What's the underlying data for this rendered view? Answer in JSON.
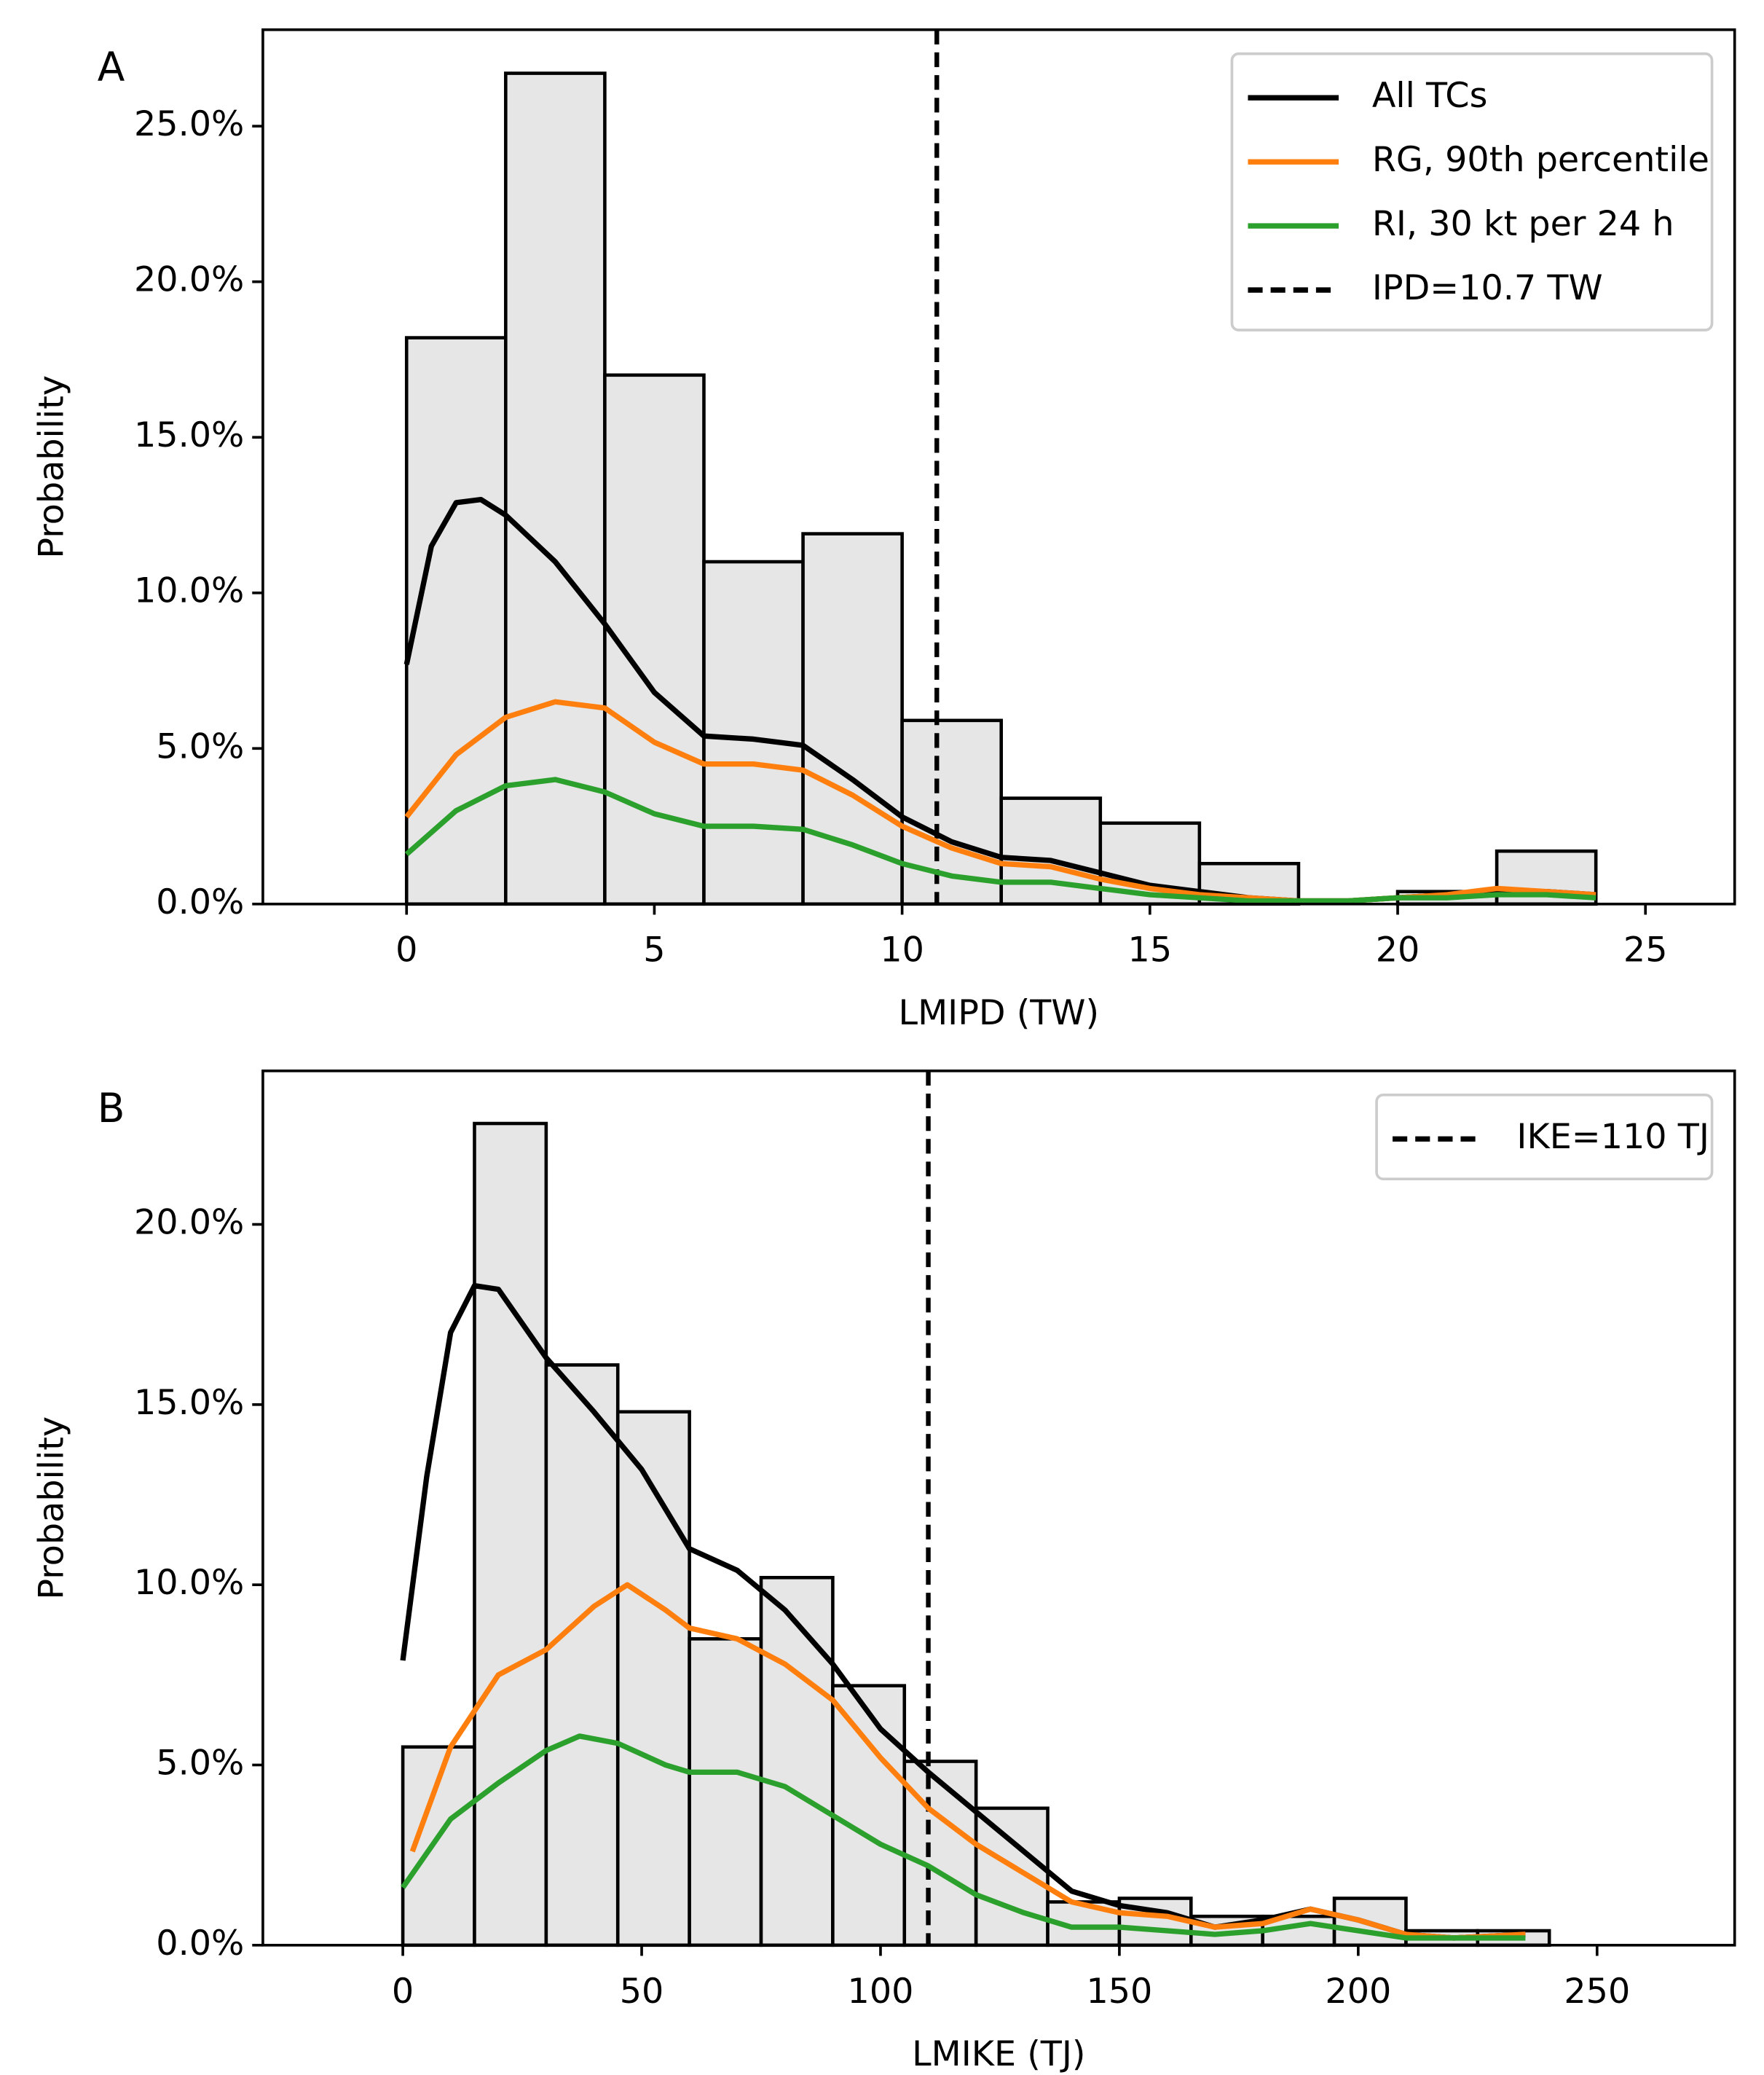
{
  "chart_data": [
    {
      "type": "histogram",
      "panel_label": "A",
      "xlabel": "LMIPD (TW)",
      "ylabel": "Probability",
      "bins": [
        0,
        2,
        4,
        6,
        8,
        10,
        12,
        14,
        16,
        18,
        20,
        22,
        24
      ],
      "counts": [
        18.2,
        26.7,
        17.0,
        11.0,
        11.9,
        5.9,
        3.4,
        2.6,
        1.3,
        0.0,
        0.4,
        1.7
      ],
      "bar_color": "#e6e6e6",
      "edge_color": "#000000",
      "series": [
        {
          "name": "All TCs",
          "color": "#000000",
          "x": [
            0,
            0.5,
            1,
            1.5,
            2,
            3,
            4,
            5,
            6,
            7,
            8,
            9,
            10,
            11,
            12,
            13,
            14,
            15,
            16,
            17,
            18,
            19,
            20,
            21,
            22,
            23,
            24
          ],
          "values": [
            7.7,
            11.5,
            12.9,
            13.0,
            12.5,
            11.0,
            9.0,
            6.8,
            5.4,
            5.3,
            5.1,
            4.0,
            2.8,
            2.0,
            1.5,
            1.4,
            1.0,
            0.6,
            0.4,
            0.2,
            0.1,
            0.1,
            0.2,
            0.3,
            0.4,
            0.4,
            0.3
          ]
        },
        {
          "name": "RG, 90th percentile",
          "color": "#ff7f0e",
          "x": [
            0,
            1,
            2,
            3,
            4,
            5,
            6,
            7,
            8,
            9,
            10,
            11,
            12,
            13,
            14,
            15,
            16,
            17,
            18,
            19,
            20,
            21,
            22,
            23,
            24
          ],
          "values": [
            2.8,
            4.8,
            6.0,
            6.5,
            6.3,
            5.2,
            4.5,
            4.5,
            4.3,
            3.5,
            2.5,
            1.8,
            1.3,
            1.2,
            0.8,
            0.5,
            0.3,
            0.2,
            0.1,
            0.1,
            0.2,
            0.3,
            0.5,
            0.4,
            0.3
          ]
        },
        {
          "name": "RI, 30 kt per 24 h",
          "color": "#2ca02c",
          "x": [
            0,
            1,
            2,
            3,
            4,
            5,
            6,
            7,
            8,
            9,
            10,
            11,
            12,
            13,
            14,
            15,
            16,
            17,
            18,
            19,
            20,
            21,
            22,
            23,
            24
          ],
          "values": [
            1.6,
            3.0,
            3.8,
            4.0,
            3.6,
            2.9,
            2.5,
            2.5,
            2.4,
            1.9,
            1.3,
            0.9,
            0.7,
            0.7,
            0.5,
            0.3,
            0.2,
            0.1,
            0.1,
            0.1,
            0.2,
            0.2,
            0.3,
            0.3,
            0.2
          ]
        }
      ],
      "vline": {
        "name": "IPD=10.7 TW",
        "value": 10.7,
        "color": "#000000"
      },
      "xlim": [
        -2.9,
        26.8
      ],
      "ylim": [
        0,
        28.1
      ],
      "xticks": [
        0,
        5,
        10,
        15,
        20,
        25
      ],
      "yticks": [
        {
          "value": 0,
          "label": "0.0%"
        },
        {
          "value": 5,
          "label": "5.0%"
        },
        {
          "value": 10,
          "label": "10.0%"
        },
        {
          "value": 15,
          "label": "15.0%"
        },
        {
          "value": 20,
          "label": "20.0%"
        },
        {
          "value": 25,
          "label": "25.0%"
        }
      ],
      "legend": "upper right"
    },
    {
      "type": "histogram",
      "panel_label": "B",
      "xlabel": "LMIKE (TJ)",
      "ylabel": "Probability",
      "bins": [
        0,
        15,
        30,
        45,
        60,
        75,
        90,
        105,
        120,
        135,
        150,
        165,
        180,
        195,
        210,
        225,
        240
      ],
      "counts": [
        5.5,
        22.8,
        16.1,
        14.8,
        8.5,
        10.2,
        7.2,
        5.1,
        3.8,
        1.2,
        1.3,
        0.8,
        0.8,
        1.3,
        0.4,
        0.4
      ],
      "bar_color": "#e6e6e6",
      "edge_color": "#000000",
      "series": [
        {
          "color": "#000000",
          "x": [
            0,
            5,
            10,
            15,
            20,
            30,
            40,
            50,
            60,
            70,
            80,
            90,
            100,
            110,
            120,
            130,
            140,
            150,
            160,
            170,
            180,
            190,
            200,
            210,
            220,
            235
          ],
          "values": [
            7.9,
            13,
            17,
            18.3,
            18.2,
            16.3,
            14.8,
            13.2,
            11.0,
            10.4,
            9.3,
            7.8,
            6.0,
            4.8,
            3.7,
            2.6,
            1.5,
            1.1,
            0.9,
            0.5,
            0.7,
            1.0,
            0.7,
            0.3,
            0.2,
            0.3
          ]
        },
        {
          "color": "#ff7f0e",
          "x": [
            2,
            10,
            20,
            30,
            40,
            47,
            55,
            60,
            70,
            80,
            90,
            100,
            110,
            120,
            130,
            140,
            150,
            160,
            170,
            180,
            190,
            200,
            210,
            220,
            235
          ],
          "values": [
            2.6,
            5.5,
            7.5,
            8.2,
            9.4,
            10.0,
            9.3,
            8.8,
            8.5,
            7.8,
            6.8,
            5.2,
            3.8,
            2.8,
            2.0,
            1.2,
            0.9,
            0.8,
            0.5,
            0.6,
            1.0,
            0.7,
            0.3,
            0.2,
            0.3
          ]
        },
        {
          "color": "#2ca02c",
          "x": [
            0,
            10,
            20,
            30,
            37,
            45,
            55,
            60,
            70,
            80,
            90,
            100,
            110,
            120,
            130,
            140,
            150,
            160,
            170,
            180,
            190,
            200,
            210,
            235
          ],
          "values": [
            1.6,
            3.5,
            4.5,
            5.4,
            5.8,
            5.6,
            5.0,
            4.8,
            4.8,
            4.4,
            3.6,
            2.8,
            2.2,
            1.4,
            0.9,
            0.5,
            0.5,
            0.4,
            0.3,
            0.4,
            0.6,
            0.4,
            0.2,
            0.2
          ]
        }
      ],
      "vline": {
        "name": "IKE=110 TJ",
        "value": 110,
        "color": "#000000"
      },
      "xlim": [
        -29.3,
        278.8
      ],
      "ylim": [
        0,
        24.26
      ],
      "xticks": [
        0,
        50,
        100,
        150,
        200,
        250
      ],
      "yticks": [
        {
          "value": 0,
          "label": "0.0%"
        },
        {
          "value": 5,
          "label": "5.0%"
        },
        {
          "value": 10,
          "label": "10.0%"
        },
        {
          "value": 15,
          "label": "15.0%"
        },
        {
          "value": 20,
          "label": "20.0%"
        }
      ],
      "legend": "upper right"
    }
  ]
}
